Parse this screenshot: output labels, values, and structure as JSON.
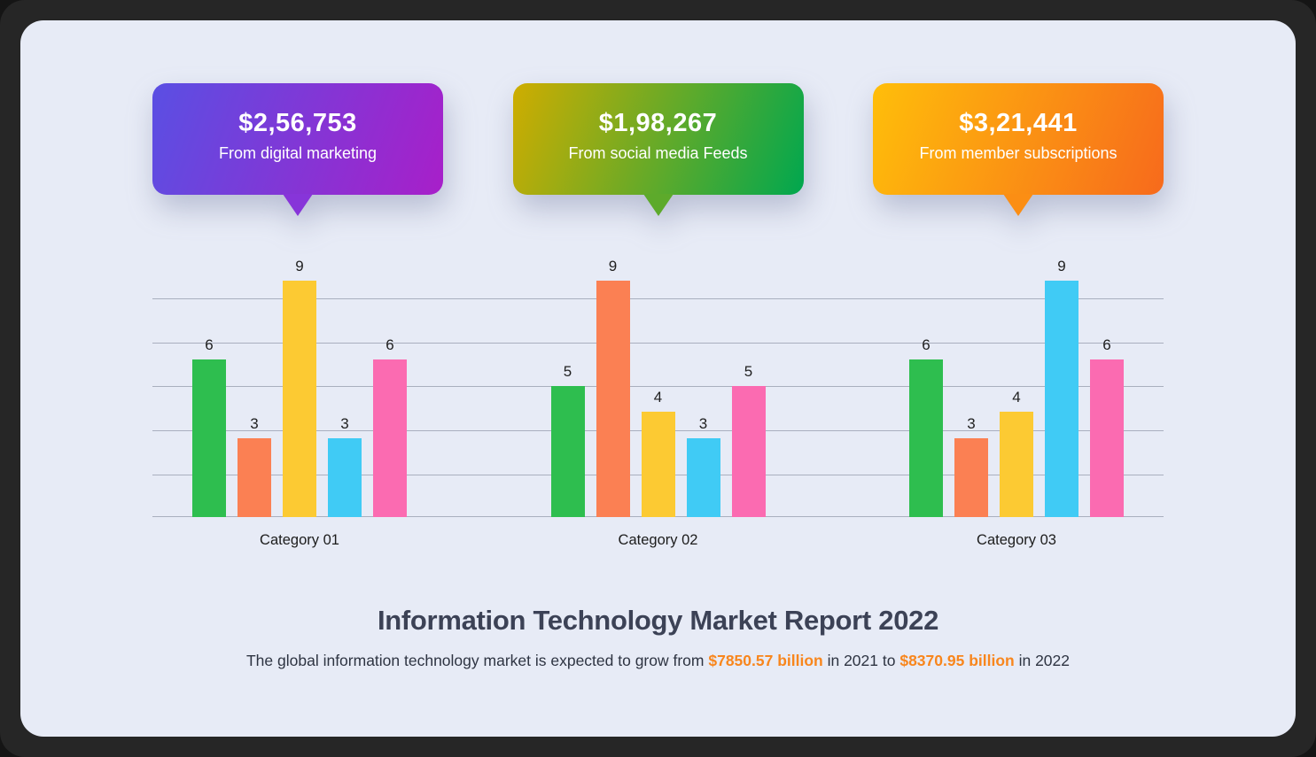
{
  "report": {
    "title": "Information Technology Market Report 2022",
    "subtitle": {
      "prefix": "The global information technology market is expected to grow from ",
      "highlight_2021": "$7850.57 billion",
      "middle": " in 2021 to ",
      "highlight_2022": "$8370.95 billion",
      "suffix": " in 2022"
    }
  },
  "callouts": [
    {
      "amount": "$2,56,753",
      "label": "From digital marketing",
      "gradient": [
        "#5A4FE3",
        "#A81FC9"
      ],
      "tail_color": "#8735D9"
    },
    {
      "amount": "$1,98,267",
      "label": "From social media Feeds",
      "gradient": [
        "#CFAD00",
        "#00A74F"
      ],
      "tail_color": "#5DAA2B"
    },
    {
      "amount": "$3,21,441",
      "label": "From member subscriptions",
      "gradient": [
        "#FFBE0A",
        "#F76A1C"
      ],
      "tail_color": "#FB8E14"
    }
  ],
  "chart_data": {
    "type": "bar",
    "categories": [
      "Category 01",
      "Category 02",
      "Category 03"
    ],
    "series": [
      {
        "name": "green",
        "color": "#2EBE4F",
        "values": [
          6,
          5,
          6
        ]
      },
      {
        "name": "orange",
        "color": "#FB8053",
        "values": [
          3,
          9,
          3
        ]
      },
      {
        "name": "yellow",
        "color": "#FCCA33",
        "values": [
          9,
          4,
          4
        ]
      },
      {
        "name": "blue",
        "color": "#40CBF5",
        "values": [
          3,
          3,
          9
        ]
      },
      {
        "name": "pink",
        "color": "#FB6BB1",
        "values": [
          6,
          5,
          6
        ]
      }
    ],
    "ylim": [
      0,
      9
    ],
    "grid": true,
    "gridline_count": 6,
    "value_labels": true,
    "legend": "none",
    "xlabel": "",
    "ylabel": ""
  },
  "colors": {
    "frame": "#262626",
    "panel_background": "#E7EBF6",
    "gridline": "#A9AFBE",
    "title_text": "#3C4256",
    "subtitle_text": "#2E3442",
    "subtitle_highlight": "#F8861D",
    "value_label_text": "#1F1F1F"
  }
}
